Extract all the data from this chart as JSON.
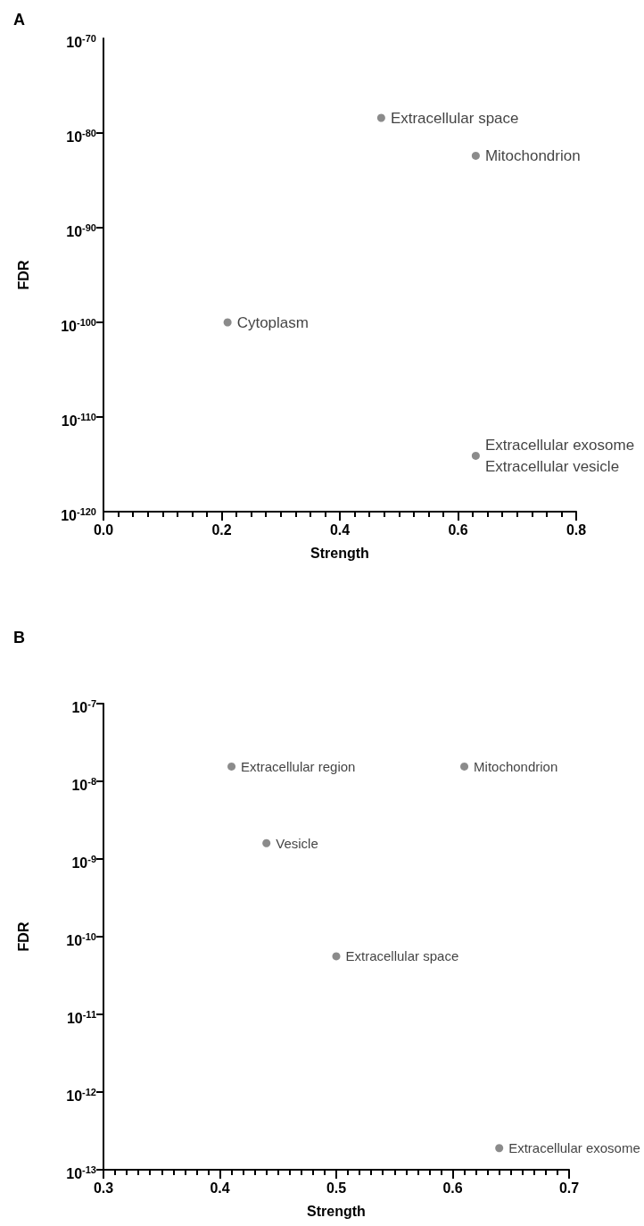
{
  "chart_data": [
    {
      "type": "scatter",
      "title": "A",
      "xlabel": "Strength",
      "ylabel": "FDR",
      "marker": "circle",
      "grid": false,
      "log": "y",
      "x": [
        0.47,
        0.63,
        0.21,
        0.63
      ],
      "series": [
        {
          "color": "#6e6e6e",
          "values": [
            4e-79,
            4e-83,
            1e-100,
            8e-115
          ]
        }
      ],
      "annotations": [
        {
          "text": "Extracellular space",
          "x": 0.47,
          "y": 4e-79
        },
        {
          "text": "Mitochondrion",
          "x": 0.63,
          "y": 4e-83
        },
        {
          "text": "Cytoplasm",
          "x": 0.21,
          "y": 1e-100
        },
        {
          "text": "Extracellular exosome",
          "x": 0.63,
          "y": 8e-115
        },
        {
          "text": "Extracellular vesicle",
          "x": 0.63,
          "y": 8e-115
        }
      ],
      "xlim": [
        0,
        0.8
      ],
      "xticks": [
        {
          "value": 0,
          "label": "0.0"
        },
        {
          "value": 0.025,
          "label": null
        },
        {
          "value": 0.05,
          "label": null
        },
        {
          "value": 0.075,
          "label": null
        },
        {
          "value": 0.1,
          "label": null
        },
        {
          "value": 0.125,
          "label": null
        },
        {
          "value": 0.15,
          "label": null
        },
        {
          "value": 0.175,
          "label": null
        },
        {
          "value": 0.2,
          "label": "0.2"
        },
        {
          "value": 0.225,
          "label": null
        },
        {
          "value": 0.25,
          "label": null
        },
        {
          "value": 0.275,
          "label": null
        },
        {
          "value": 0.3,
          "label": null
        },
        {
          "value": 0.325,
          "label": null
        },
        {
          "value": 0.35,
          "label": null
        },
        {
          "value": 0.375,
          "label": null
        },
        {
          "value": 0.4,
          "label": "0.4"
        },
        {
          "value": 0.425,
          "label": null
        },
        {
          "value": 0.45,
          "label": null
        },
        {
          "value": 0.475,
          "label": null
        },
        {
          "value": 0.5,
          "label": null
        },
        {
          "value": 0.525,
          "label": null
        },
        {
          "value": 0.55,
          "label": null
        },
        {
          "value": 0.575,
          "label": null
        },
        {
          "value": 0.6,
          "label": "0.6"
        },
        {
          "value": 0.625,
          "label": null
        },
        {
          "value": 0.65,
          "label": null
        },
        {
          "value": 0.675,
          "label": null
        },
        {
          "value": 0.7,
          "label": null
        },
        {
          "value": 0.725,
          "label": null
        },
        {
          "value": 0.75,
          "label": null
        },
        {
          "value": 0.775,
          "label": null
        },
        {
          "value": 0.8,
          "label": "0.8"
        }
      ],
      "ylim": [
        1e-120,
        1e-70
      ],
      "yticks": [
        {
          "value": 1e-120,
          "label": "10$^{-120}$"
        },
        {
          "value": 1e-110,
          "label": "10$^{-110}$"
        },
        {
          "value": 1e-100,
          "label": "10$^{-100}$"
        },
        {
          "value": 1e-90,
          "label": "10$^{-90}$"
        },
        {
          "value": 1e-80,
          "label": "10$^{-80}$"
        },
        {
          "value": 1e-70,
          "label": "10$^{-70}$"
        }
      ]
    },
    {
      "type": "scatter",
      "title": "B",
      "xlabel": "Strength",
      "ylabel": "FDR",
      "marker": "circle",
      "grid": false,
      "log": "y",
      "x": [
        0.41,
        0.61,
        0.44,
        0.5,
        0.64
      ],
      "series": [
        {
          "color": "#6e6e6e",
          "values": [
            1.55e-08,
            1.55e-08,
            1.6e-09,
            5.6e-11,
            1.9e-13
          ]
        }
      ],
      "annotations": [
        {
          "text": "Extracellular region",
          "x": 0.41,
          "y": 1.55e-08
        },
        {
          "text": "Mitochondrion",
          "x": 0.61,
          "y": 1.55e-08
        },
        {
          "text": "Vesicle",
          "x": 0.44,
          "y": 1.6e-09
        },
        {
          "text": "Extracellular space",
          "x": 0.5,
          "y": 5.6e-11
        },
        {
          "text": "Extracellular exosome",
          "x": 0.64,
          "y": 1.9e-13
        }
      ],
      "xlim": [
        0.3,
        0.7
      ],
      "xticks": [
        {
          "value": 0.3,
          "label": "0.3"
        },
        {
          "value": 0.31,
          "label": null
        },
        {
          "value": 0.32,
          "label": null
        },
        {
          "value": 0.33,
          "label": null
        },
        {
          "value": 0.34,
          "label": null
        },
        {
          "value": 0.35,
          "label": null
        },
        {
          "value": 0.36,
          "label": null
        },
        {
          "value": 0.37,
          "label": null
        },
        {
          "value": 0.38,
          "label": null
        },
        {
          "value": 0.39,
          "label": null
        },
        {
          "value": 0.4,
          "label": "0.4"
        },
        {
          "value": 0.41,
          "label": null
        },
        {
          "value": 0.42,
          "label": null
        },
        {
          "value": 0.43,
          "label": null
        },
        {
          "value": 0.44,
          "label": null
        },
        {
          "value": 0.45,
          "label": null
        },
        {
          "value": 0.46,
          "label": null
        },
        {
          "value": 0.47,
          "label": null
        },
        {
          "value": 0.48,
          "label": null
        },
        {
          "value": 0.49,
          "label": null
        },
        {
          "value": 0.5,
          "label": "0.5"
        },
        {
          "value": 0.51,
          "label": null
        },
        {
          "value": 0.52,
          "label": null
        },
        {
          "value": 0.53,
          "label": null
        },
        {
          "value": 0.54,
          "label": null
        },
        {
          "value": 0.55,
          "label": null
        },
        {
          "value": 0.56,
          "label": null
        },
        {
          "value": 0.57,
          "label": null
        },
        {
          "value": 0.58,
          "label": null
        },
        {
          "value": 0.59,
          "label": null
        },
        {
          "value": 0.6,
          "label": "0.6"
        },
        {
          "value": 0.61,
          "label": null
        },
        {
          "value": 0.62,
          "label": null
        },
        {
          "value": 0.63,
          "label": null
        },
        {
          "value": 0.64,
          "label": null
        },
        {
          "value": 0.65,
          "label": null
        },
        {
          "value": 0.66,
          "label": null
        },
        {
          "value": 0.67,
          "label": null
        },
        {
          "value": 0.68,
          "label": null
        },
        {
          "value": 0.69,
          "label": null
        },
        {
          "value": 0.7,
          "label": "0.7"
        }
      ],
      "ylim": [
        1e-13,
        1e-07
      ],
      "yticks": [
        {
          "value": 1e-13,
          "label": "10$^{-13}$"
        },
        {
          "value": 1e-12,
          "label": "10$^{-12}$"
        },
        {
          "value": 1e-11,
          "label": "10$^{-11}$"
        },
        {
          "value": 1e-10,
          "label": "10$^{-10}$"
        },
        {
          "value": 1e-09,
          "label": "10$^{-9}$"
        },
        {
          "value": 1e-08,
          "label": "10$^{-8}$"
        },
        {
          "value": 1e-07,
          "label": "10$^{-7}$"
        }
      ]
    }
  ]
}
